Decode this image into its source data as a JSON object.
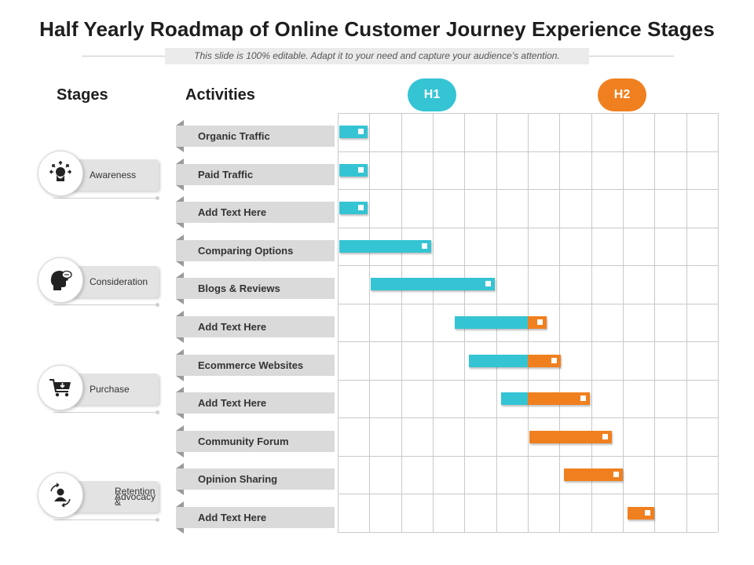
{
  "title": "Half Yearly Roadmap of Online Customer Journey Experience Stages",
  "subtitle": "This slide is 100% editable. Adapt it to your need and capture your audience’s attention.",
  "headers": {
    "stages": "Stages",
    "activities": "Activities"
  },
  "periods": [
    {
      "label": "H1",
      "color": "#35c4d3"
    },
    {
      "label": "H2",
      "color": "#f0801f"
    }
  ],
  "stages": [
    {
      "line1": "Awareness",
      "line2": "",
      "icon": "head-arrows-icon"
    },
    {
      "line1": "Consideration",
      "line2": "",
      "icon": "head-thinking-icon"
    },
    {
      "line1": "Purchase",
      "line2": "",
      "icon": "shopping-cart-icon"
    },
    {
      "line1": "Retention &",
      "line2": "Advocacy",
      "icon": "user-cycle-icon"
    }
  ],
  "activities": [
    "Organic Traffic",
    "Paid Traffic",
    "Add Text Here",
    "Comparing Options",
    "Blogs & Reviews",
    "Add Text Here",
    "Ecommerce  Websites",
    "Add Text Here",
    "Community Forum",
    "Opinion Sharing",
    "Add Text Here"
  ],
  "timeline": {
    "columns": 12,
    "h1_columns": 6,
    "bars": [
      {
        "start": 0.0,
        "end": 0.95
      },
      {
        "start": 0.0,
        "end": 0.95
      },
      {
        "start": 0.0,
        "end": 0.95
      },
      {
        "start": 0.0,
        "end": 2.95
      },
      {
        "start": 1.0,
        "end": 4.95
      },
      {
        "start": 3.65,
        "end": 6.6
      },
      {
        "start": 4.1,
        "end": 7.05
      },
      {
        "start": 5.1,
        "end": 7.95
      },
      {
        "start": 6.0,
        "end": 8.65
      },
      {
        "start": 7.1,
        "end": 9.0
      },
      {
        "start": 9.1,
        "end": 10.0
      }
    ]
  },
  "colors": {
    "h1": "#35c4d3",
    "h2": "#f0801f"
  }
}
